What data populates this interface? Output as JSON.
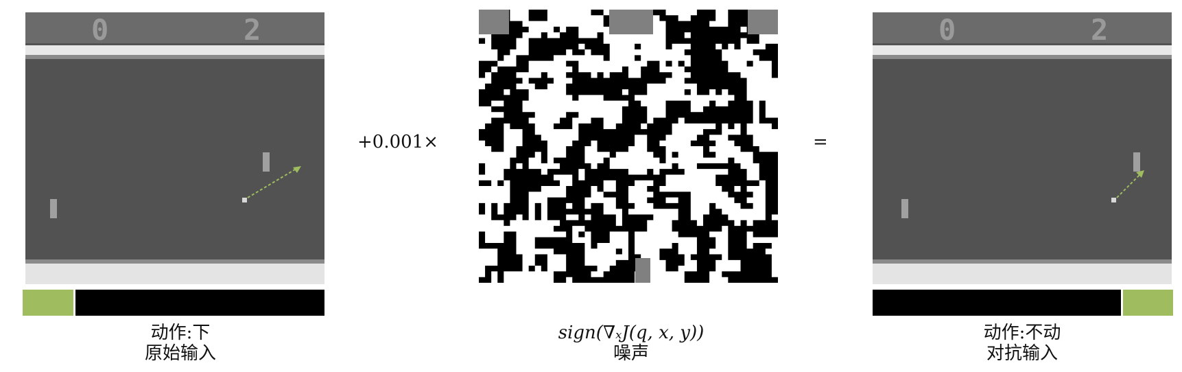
{
  "left_panel": {
    "score_left": "0",
    "score_right": "2",
    "caption_action": "动作:下",
    "caption_label": "原始输入",
    "action_colors": {
      "selected": "#9fbc5f",
      "other": "#000000"
    }
  },
  "operator_plus": "+0.001×",
  "noise_panel": {
    "formula": "sign(∇ₓJ(q, x, y))",
    "caption_label": "噪声"
  },
  "operator_equals": "=",
  "right_panel": {
    "score_left": "0",
    "score_right": "2",
    "caption_action": "动作:不动",
    "caption_label": "对抗输入"
  }
}
